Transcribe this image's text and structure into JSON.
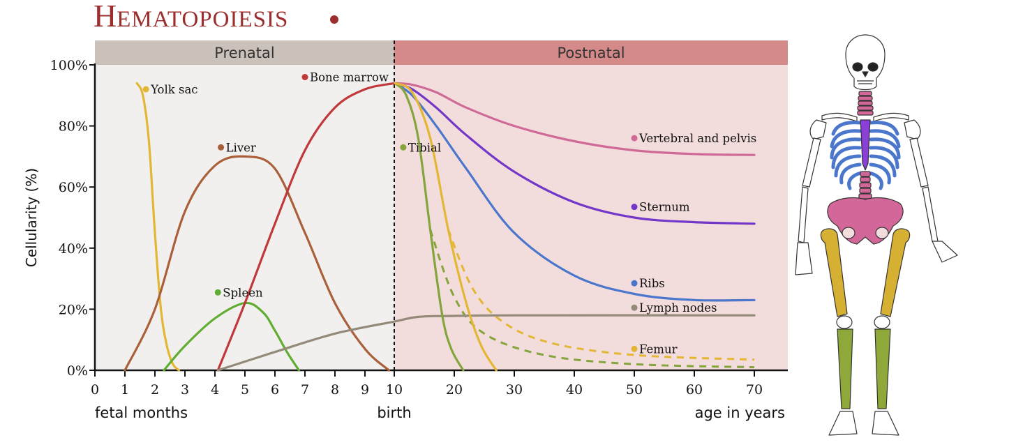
{
  "title": {
    "first": "H",
    "rest": "EMATOPOIESIS"
  },
  "colors": {
    "prenatal_bg": "#f2f0ee",
    "postnatal_bg": "#f3dcdc",
    "prenatal_band": "#cbc1bb",
    "postnatal_band": "#d48a89",
    "title": "#9b2d2d"
  },
  "chart_data": {
    "type": "line",
    "bands": [
      {
        "label": "Prenatal",
        "from": 0,
        "to": 10
      },
      {
        "label": "Postnatal",
        "from": 10,
        "to": 70
      }
    ],
    "ylabel": "Cellularity (%)",
    "ylim": [
      0,
      100
    ],
    "yticks": [
      {
        "v": 0,
        "label": "0%"
      },
      {
        "v": 20,
        "label": "20%"
      },
      {
        "v": 40,
        "label": "40%"
      },
      {
        "v": 60,
        "label": "60%"
      },
      {
        "v": 80,
        "label": "80%"
      },
      {
        "v": 100,
        "label": "100%"
      }
    ],
    "x_fetal_ticks": [
      "0",
      "1",
      "2",
      "3",
      "4",
      "5",
      "6",
      "7",
      "8",
      "9"
    ],
    "x_postnatal_ticks": [
      "10",
      "20",
      "30",
      "40",
      "50",
      "60",
      "70"
    ],
    "x_fetal_label": "fetal months",
    "x_birth_label": "birth",
    "x_postnatal_label": "age in years",
    "series": [
      {
        "name": "Yolk sac",
        "color": "#e3b634",
        "points": [
          [
            1.4,
            94
          ],
          [
            1.6,
            90
          ],
          [
            1.8,
            75
          ],
          [
            2.0,
            45
          ],
          [
            2.2,
            20
          ],
          [
            2.4,
            8
          ],
          [
            2.6,
            2
          ],
          [
            2.8,
            0
          ]
        ]
      },
      {
        "name": "Liver",
        "color": "#a9603a",
        "points": [
          [
            1.0,
            0
          ],
          [
            2.0,
            20
          ],
          [
            3.0,
            52
          ],
          [
            4.0,
            67
          ],
          [
            5.0,
            70
          ],
          [
            6.0,
            66
          ],
          [
            7.0,
            45
          ],
          [
            8.0,
            22
          ],
          [
            9.0,
            7
          ],
          [
            9.8,
            0
          ]
        ]
      },
      {
        "name": "Spleen",
        "color": "#5fad32",
        "points": [
          [
            2.3,
            0
          ],
          [
            3.0,
            8
          ],
          [
            4.0,
            17
          ],
          [
            5.0,
            22
          ],
          [
            5.6,
            19
          ],
          [
            6.0,
            13
          ],
          [
            6.4,
            6
          ],
          [
            6.8,
            0
          ]
        ]
      },
      {
        "name": "Bone marrow",
        "color": "#c0383a",
        "points": [
          [
            4.1,
            0
          ],
          [
            5.0,
            22
          ],
          [
            6.0,
            48
          ],
          [
            7.0,
            72
          ],
          [
            8.0,
            86
          ],
          [
            9.0,
            92
          ],
          [
            10.0,
            94
          ]
        ]
      },
      {
        "name": "Lymph nodes",
        "color": "#948a79",
        "points": [
          [
            4.1,
            0
          ],
          [
            6,
            6
          ],
          [
            8,
            12
          ],
          [
            10,
            16
          ],
          [
            14,
            17.5
          ],
          [
            20,
            17.8
          ],
          [
            30,
            18
          ],
          [
            70,
            18
          ]
        ]
      },
      {
        "name": "Vertebral and pelvis",
        "color": "#cf6a96",
        "points": [
          [
            10,
            94
          ],
          [
            13,
            93.5
          ],
          [
            17,
            91
          ],
          [
            22,
            86
          ],
          [
            30,
            80
          ],
          [
            40,
            75
          ],
          [
            50,
            72
          ],
          [
            60,
            70.8
          ],
          [
            70,
            70.5
          ]
        ]
      },
      {
        "name": "Sternum",
        "color": "#7237c8",
        "points": [
          [
            10,
            94
          ],
          [
            13,
            92
          ],
          [
            17,
            86
          ],
          [
            22,
            77
          ],
          [
            30,
            65
          ],
          [
            40,
            55
          ],
          [
            50,
            50
          ],
          [
            60,
            48.5
          ],
          [
            70,
            48
          ]
        ]
      },
      {
        "name": "Ribs",
        "color": "#4a77cc",
        "points": [
          [
            10,
            94
          ],
          [
            13,
            90
          ],
          [
            17,
            80
          ],
          [
            22,
            66
          ],
          [
            30,
            45
          ],
          [
            40,
            31
          ],
          [
            50,
            25
          ],
          [
            60,
            23
          ],
          [
            70,
            23
          ]
        ]
      },
      {
        "name": "Tibial",
        "color": "#84a53c",
        "points": [
          [
            10,
            94
          ],
          [
            12,
            90
          ],
          [
            14,
            76
          ],
          [
            16,
            46
          ],
          [
            18,
            18
          ],
          [
            19.5,
            7
          ],
          [
            21.5,
            0
          ]
        ]
      },
      {
        "name": "Femur",
        "color": "#e3b634",
        "points": [
          [
            10,
            94
          ],
          [
            13,
            91
          ],
          [
            16,
            76
          ],
          [
            19,
            46
          ],
          [
            22,
            22
          ],
          [
            24.5,
            8
          ],
          [
            27,
            0
          ]
        ]
      }
    ],
    "dashed_series": [
      {
        "color": "#84a53c",
        "points": [
          [
            16,
            46
          ],
          [
            20,
            24
          ],
          [
            25,
            12
          ],
          [
            35,
            5
          ],
          [
            50,
            2
          ],
          [
            70,
            1
          ]
        ]
      },
      {
        "color": "#e3b634",
        "points": [
          [
            19,
            46
          ],
          [
            23,
            27
          ],
          [
            28,
            16
          ],
          [
            36,
            9
          ],
          [
            50,
            5
          ],
          [
            70,
            3.5
          ]
        ]
      }
    ],
    "labels": [
      {
        "text": "Yolk sac",
        "color": "#e3b634",
        "x": 1.7,
        "y": 92
      },
      {
        "text": "Liver",
        "color": "#a9603a",
        "x": 4.2,
        "y": 73
      },
      {
        "text": "Spleen",
        "color": "#5fad32",
        "x": 4.1,
        "y": 25.5
      },
      {
        "text": "Bone marrow",
        "color": "#c0383a",
        "x": 7.0,
        "y": 96
      },
      {
        "text": "Tibial",
        "color": "#84a53c",
        "x": 11.5,
        "y": 73
      },
      {
        "text": "Vertebral and pelvis",
        "color": "#cf6a96",
        "x": 50,
        "y": 76
      },
      {
        "text": "Sternum",
        "color": "#7237c8",
        "x": 50,
        "y": 53.5
      },
      {
        "text": "Ribs",
        "color": "#4a77cc",
        "x": 50,
        "y": 28.5
      },
      {
        "text": "Lymph nodes",
        "color": "#948a79",
        "x": 50,
        "y": 20.5
      },
      {
        "text": "Femur",
        "color": "#e3b634",
        "x": 50,
        "y": 7
      }
    ]
  },
  "skeleton": {
    "bone_color": "#ffffff",
    "outline_color": "#333333",
    "vertebral_color": "#d4679a",
    "sternum_color": "#8a3fd6",
    "ribs_color": "#4a77cc",
    "femur_color": "#d6b032",
    "tibia_color": "#8fa83a"
  }
}
